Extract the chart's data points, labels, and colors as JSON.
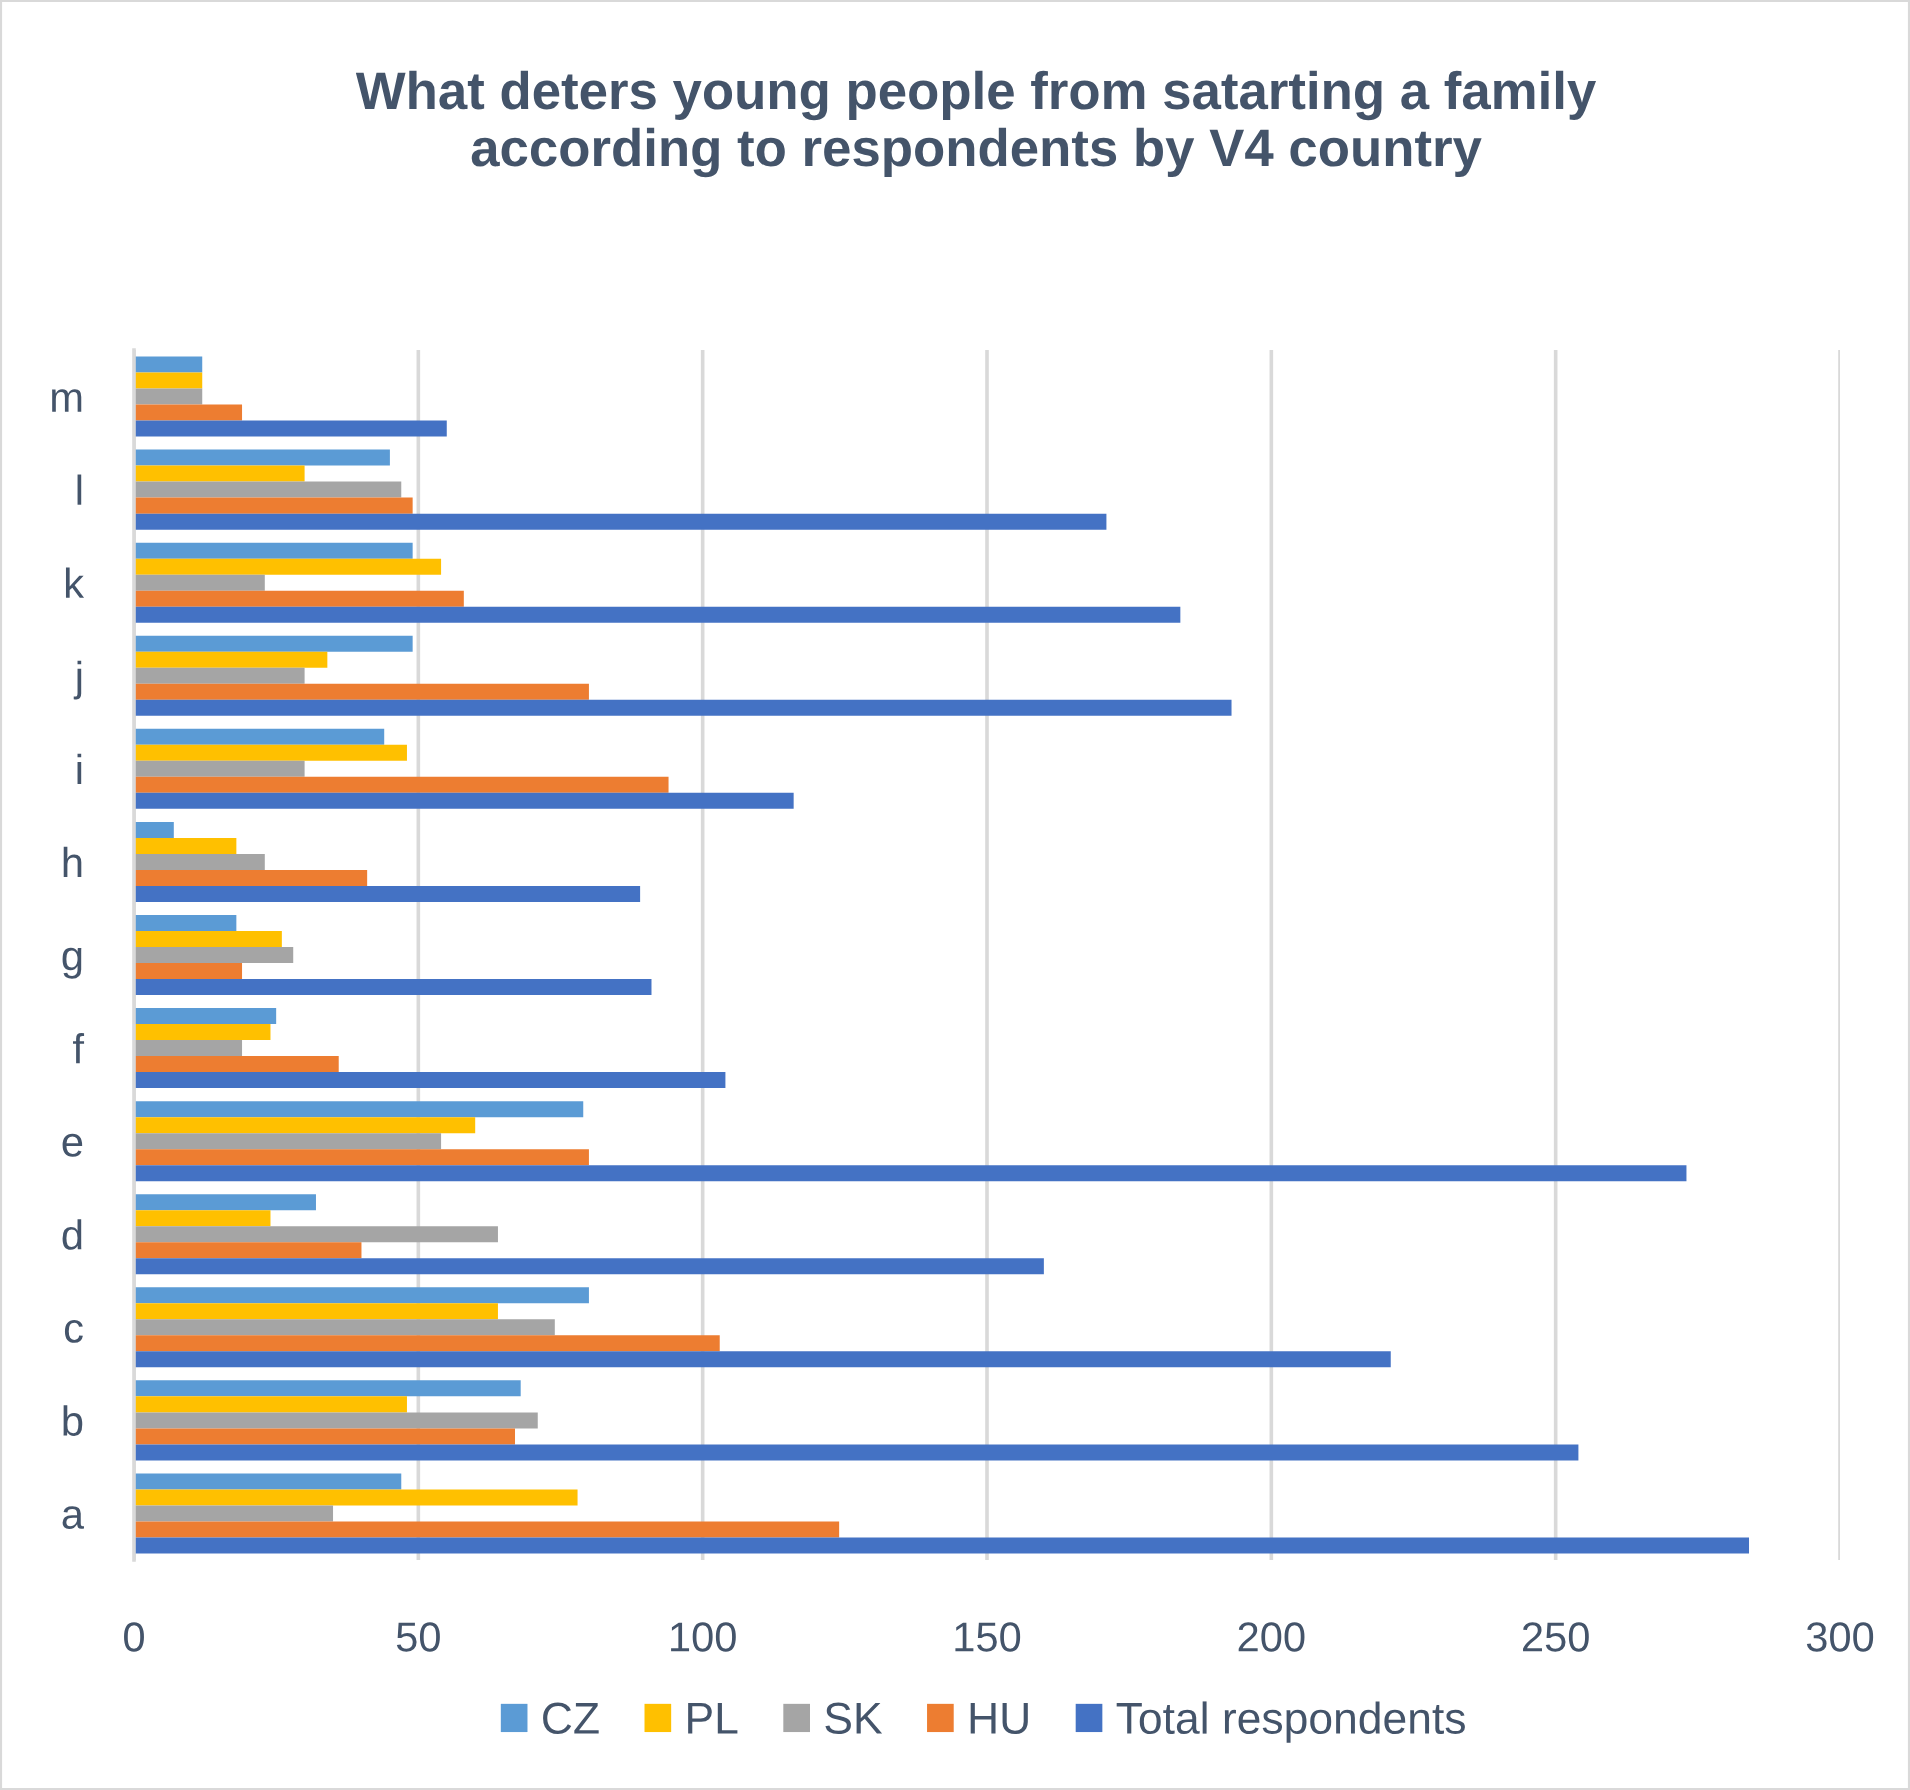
{
  "chart_data": {
    "type": "bar",
    "orientation": "horizontal",
    "title": "What deters young people from satarting a family\naccording to respondents by V4 country",
    "categories": [
      "m",
      "l",
      "k",
      "j",
      "i",
      "h",
      "g",
      "f",
      "e",
      "d",
      "c",
      "b",
      "a"
    ],
    "series": [
      {
        "name": "CZ",
        "color": "#5b9bd5",
        "values": [
          12,
          45,
          49,
          49,
          44,
          7,
          18,
          25,
          79,
          32,
          80,
          68,
          47
        ]
      },
      {
        "name": "PL",
        "color": "#ffc000",
        "values": [
          12,
          30,
          54,
          34,
          48,
          18,
          26,
          24,
          60,
          24,
          64,
          48,
          78
        ]
      },
      {
        "name": "SK",
        "color": "#a5a5a5",
        "values": [
          12,
          47,
          23,
          30,
          30,
          23,
          28,
          19,
          54,
          64,
          74,
          71,
          35
        ]
      },
      {
        "name": "HU",
        "color": "#ed7d31",
        "values": [
          19,
          49,
          58,
          80,
          94,
          41,
          19,
          36,
          80,
          40,
          103,
          67,
          124
        ]
      },
      {
        "name": "Total respondents",
        "color": "#4472c4",
        "values": [
          55,
          171,
          184,
          193,
          116,
          89,
          91,
          104,
          273,
          160,
          221,
          254,
          284
        ]
      }
    ],
    "xlim": [
      0,
      300
    ],
    "xticks": [
      0,
      50,
      100,
      150,
      200,
      250,
      300
    ],
    "grid": "x",
    "legend": "bottom"
  }
}
